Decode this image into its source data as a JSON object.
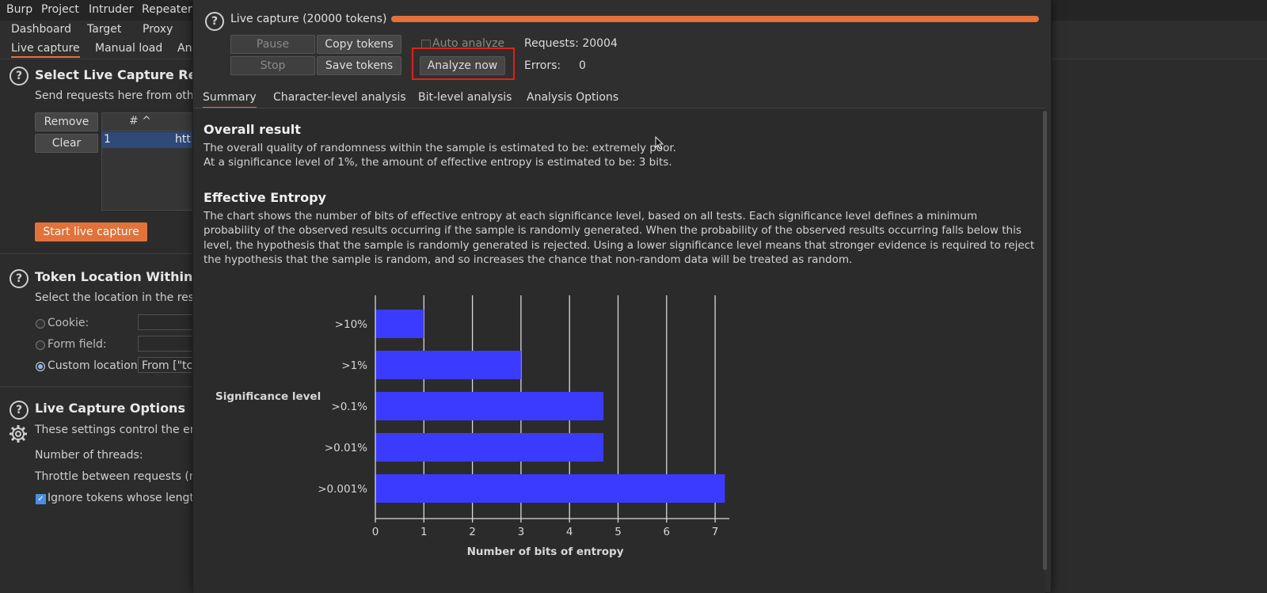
{
  "menubar": {
    "items": [
      "Burp",
      "Project",
      "Intruder",
      "Repeater"
    ]
  },
  "main_tabs": [
    "Dashboard",
    "Target",
    "Proxy"
  ],
  "sub_tabs": [
    "Live capture",
    "Manual load",
    "An"
  ],
  "left_panel": {
    "select_section": {
      "title": "Select Live Capture Requ",
      "desc": "Send requests here from othe",
      "remove_label": "Remove",
      "clear_label": "Clear",
      "table_header": "# ^",
      "table_row_num": "1",
      "table_row_url": "htt",
      "start_label": "Start live capture"
    },
    "token_section": {
      "title": "Token Location Within Re",
      "desc": "Select the location in the resp",
      "cookie_label": "Cookie:",
      "form_label": "Form field:",
      "custom_label": "Custom location:",
      "custom_value": "From [\"tc"
    },
    "options_section": {
      "title": "Live Capture Options",
      "desc": "These settings control the eng",
      "threads_label": "Number of threads:",
      "throttle_label": "Throttle between requests (m",
      "ignore_label": "Ignore tokens whose length"
    }
  },
  "dialog": {
    "title": "Live capture (20000 tokens)",
    "progress": 1.0,
    "pause_label": "Pause",
    "stop_label": "Stop",
    "copy_label": "Copy tokens",
    "save_label": "Save tokens",
    "auto_analyze_label": "Auto analyze",
    "analyze_now_label": "Analyze now",
    "requests_text": "Requests: 20004",
    "errors_label": "Errors:",
    "errors_value": "0",
    "tabs": [
      "Summary",
      "Character-level analysis",
      "Bit-level analysis",
      "Analysis Options"
    ],
    "overall_heading": "Overall result",
    "overall_line1": "The overall quality of randomness within the sample is estimated to be: extremely poor.",
    "overall_line2": "At a significance level of 1%, the amount of effective entropy is estimated to be: 3 bits.",
    "entropy_heading": "Effective Entropy",
    "entropy_para": "The chart shows the number of bits of effective entropy at each significance level, based on all tests. Each significance level defines a minimum probability of the observed results occurring if the sample is randomly generated. When the probability of the observed results occurring falls below this level, the hypothesis that the sample is randomly generated is rejected. Using a lower significance level means that stronger evidence is required to reject the hypothesis that the sample is random, and so increases the chance that non-random data will be treated as random."
  },
  "colors": {
    "accent": "#e3713a",
    "bar": "#3b3bff",
    "highlight": "#e0201c"
  },
  "chart_data": {
    "type": "bar",
    "orientation": "horizontal",
    "categories": [
      ">10%",
      ">1%",
      ">0.1%",
      ">0.01%",
      ">0.001%"
    ],
    "values": [
      1,
      3,
      4.7,
      4.7,
      7.2
    ],
    "xlabel": "Number of bits of entropy",
    "ylabel": "Significance level",
    "xlim": [
      0,
      7
    ],
    "xticks": [
      "0",
      "1",
      "2",
      "3",
      "4",
      "5",
      "6",
      "7"
    ],
    "grid": true
  }
}
